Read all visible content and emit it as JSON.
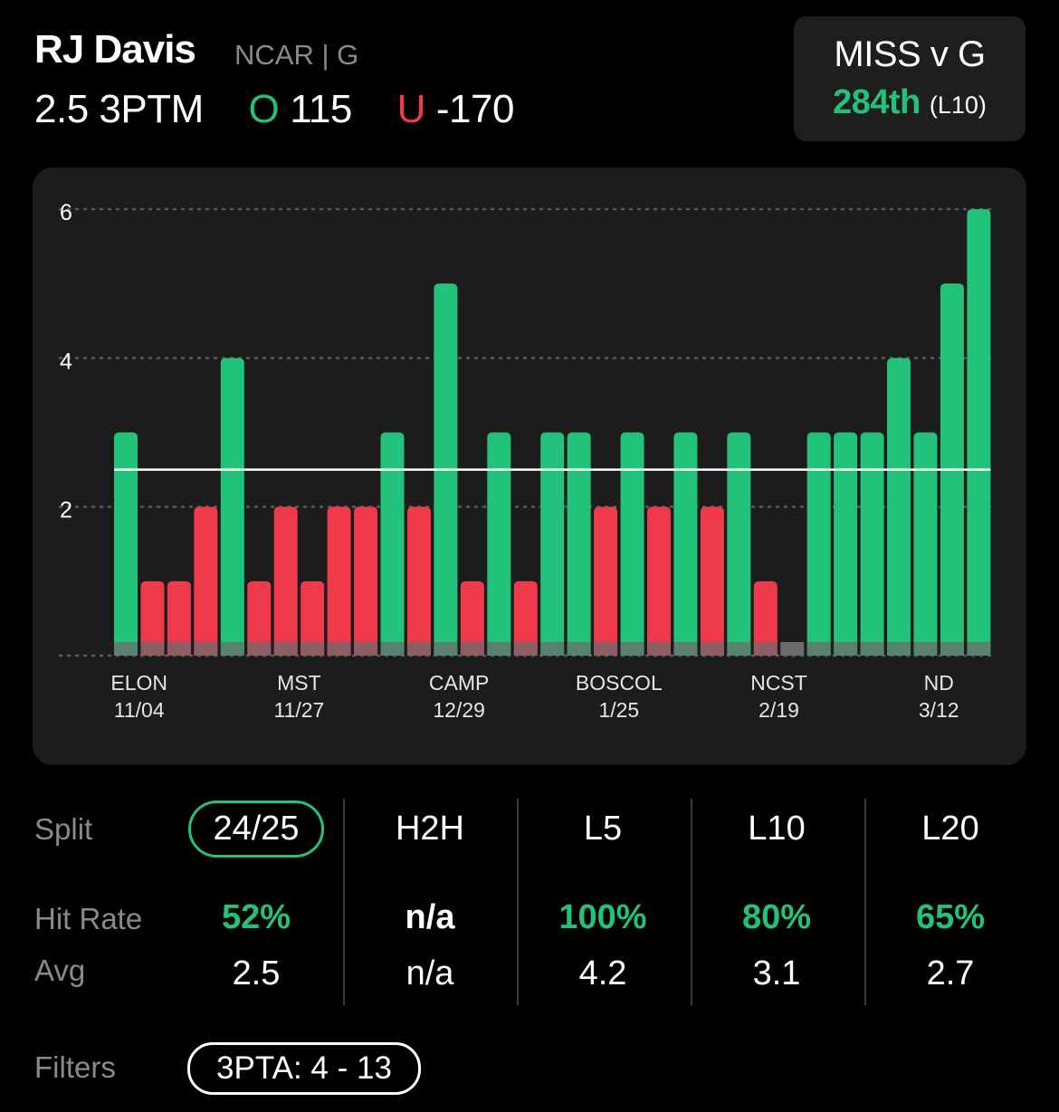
{
  "player": {
    "name": "RJ Davis",
    "team_pos": "NCAR | G"
  },
  "prop": {
    "line": "2.5 3PTM",
    "over_letter": "O",
    "over_odds": "115",
    "under_letter": "U",
    "under_odds": "-170"
  },
  "opponent": {
    "title": "MISS v G",
    "rank": "284th",
    "window": "(L10)"
  },
  "colors": {
    "hit": "#22c27a",
    "miss": "#ef3a4c",
    "base": "#6b6b6b",
    "line": "#ffffff"
  },
  "chart_data": {
    "type": "bar",
    "ylim": [
      0,
      6
    ],
    "yticks": [
      2,
      4,
      6
    ],
    "threshold": 2.5,
    "values": [
      3,
      1,
      1,
      2,
      4,
      1,
      2,
      1,
      2,
      2,
      3,
      2,
      5,
      1,
      3,
      1,
      3,
      3,
      2,
      3,
      2,
      3,
      2,
      3,
      1,
      0,
      3,
      3,
      3,
      4,
      3,
      5,
      6
    ],
    "x_labels": [
      {
        "index": 0.5,
        "team": "ELON",
        "date": "11/04"
      },
      {
        "index": 6.5,
        "team": "MST",
        "date": "11/27"
      },
      {
        "index": 12.5,
        "team": "CAMP",
        "date": "12/29"
      },
      {
        "index": 18.5,
        "team": "BOSCOL",
        "date": "1/25"
      },
      {
        "index": 24.5,
        "team": "NCST",
        "date": "2/19"
      },
      {
        "index": 30.5,
        "team": "ND",
        "date": "3/12"
      }
    ]
  },
  "splits": {
    "labels": {
      "split": "Split",
      "hit_rate": "Hit Rate",
      "avg": "Avg"
    },
    "columns": [
      {
        "head": "24/25",
        "hit": "52%",
        "avg": "2.5"
      },
      {
        "head": "H2H",
        "hit": "n/a",
        "avg": "n/a"
      },
      {
        "head": "L5",
        "hit": "100%",
        "avg": "4.2"
      },
      {
        "head": "L10",
        "hit": "80%",
        "avg": "3.1"
      },
      {
        "head": "L20",
        "hit": "65%",
        "avg": "2.7"
      }
    ]
  },
  "filters": {
    "label": "Filters",
    "chip": "3PTA: 4 - 13"
  }
}
